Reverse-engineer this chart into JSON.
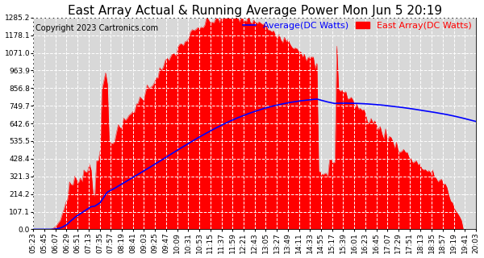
{
  "title": "East Array Actual & Running Average Power Mon Jun 5 20:19",
  "copyright": "Copyright 2023 Cartronics.com",
  "legend_avg": "Average(DC Watts)",
  "legend_east": "East Array(DC Watts)",
  "avg_color": "blue",
  "east_color": "red",
  "bg_color": "#ffffff",
  "plot_bg_color": "#d8d8d8",
  "grid_color": "#ffffff",
  "yticks": [
    0.0,
    107.1,
    214.2,
    321.3,
    428.4,
    535.5,
    642.6,
    749.7,
    856.8,
    963.9,
    1071.0,
    1178.1,
    1285.2
  ],
  "ymax": 1285.2,
  "ymin": 0.0,
  "title_fontsize": 11,
  "copyright_fontsize": 7,
  "legend_fontsize": 8,
  "tick_fontsize": 6.5,
  "xtick_labels": [
    "05:23",
    "05:45",
    "06:07",
    "06:29",
    "06:51",
    "07:13",
    "07:35",
    "07:57",
    "08:19",
    "08:41",
    "09:03",
    "09:25",
    "09:47",
    "10:09",
    "10:31",
    "10:53",
    "11:15",
    "11:37",
    "11:59",
    "12:21",
    "12:43",
    "13:05",
    "13:27",
    "13:49",
    "14:11",
    "14:33",
    "14:55",
    "15:17",
    "15:39",
    "16:01",
    "16:23",
    "16:45",
    "17:07",
    "17:29",
    "17:51",
    "18:13",
    "18:35",
    "18:57",
    "19:19",
    "19:41",
    "20:03"
  ],
  "n_points": 246
}
